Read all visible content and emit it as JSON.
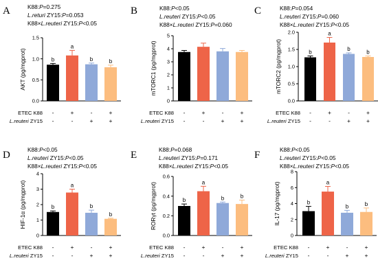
{
  "chart_data": [
    {
      "panel": "A",
      "type": "bar",
      "ylabel": "AKT (pg/mgprot)",
      "ylim": [
        0,
        1.5
      ],
      "yticks": [
        "0.0",
        "0.5",
        "1.0",
        "1.5"
      ],
      "categories": [
        "-/-",
        "+/-",
        "-/+",
        "+/+"
      ],
      "values": [
        0.86,
        1.08,
        0.87,
        0.8
      ],
      "errors": [
        0.03,
        0.12,
        0.03,
        0.05
      ],
      "letters": [
        "b",
        "a",
        "b",
        "b"
      ],
      "stats": [
        {
          "prefix": "K88:",
          "italic": "P",
          "suffix": "=0.275"
        },
        {
          "italic": "L.returi",
          "prefix2": " ZY15:",
          "italic2": "P",
          "suffix": "=0.053"
        },
        {
          "prefix": "K88×",
          "italic": "L.reuteri",
          "prefix2": " ZY15:",
          "italic2": "P",
          "suffix": "<0.05"
        }
      ]
    },
    {
      "panel": "B",
      "type": "bar",
      "ylabel": "mTORC1 (pg/mgprot)",
      "ylim": [
        0,
        5
      ],
      "yticks": [
        "0",
        "1",
        "2",
        "3",
        "4",
        "5"
      ],
      "categories": [
        "-/-",
        "+/-",
        "-/+",
        "+/+"
      ],
      "values": [
        3.75,
        4.15,
        3.8,
        3.75
      ],
      "errors": [
        0.12,
        0.28,
        0.22,
        0.12
      ],
      "letters": [
        "",
        "",
        "",
        ""
      ],
      "stats": [
        {
          "prefix": "K88:",
          "italic": "P",
          "suffix": "<0.05"
        },
        {
          "italic": "L.reuteri",
          "prefix2": " ZY15:",
          "italic2": "P",
          "suffix": "<0.05"
        },
        {
          "prefix": "K88×",
          "italic": "L.reuteri",
          "prefix2": " ZY15:",
          "italic2": "P",
          "suffix": "=0.060"
        }
      ]
    },
    {
      "panel": "C",
      "type": "bar",
      "ylabel": "mTORC2 (pg/mgprot)",
      "ylim": [
        0,
        2.0
      ],
      "yticks": [
        "0.0",
        "0.5",
        "1.0",
        "1.5",
        "2.0"
      ],
      "categories": [
        "-/-",
        "+/-",
        "-/+",
        "+/+"
      ],
      "values": [
        1.27,
        1.7,
        1.37,
        1.28
      ],
      "errors": [
        0.04,
        0.15,
        0.03,
        0.03
      ],
      "letters": [
        "b",
        "a",
        "b",
        "b"
      ],
      "stats": [
        {
          "prefix": "K88:",
          "italic": "P",
          "suffix": "=0.054"
        },
        {
          "italic": "L.reuteri",
          "prefix2": " ZY15:",
          "italic2": "P",
          "suffix": "=0.060"
        },
        {
          "prefix": "K88×",
          "italic": "L.reuteri",
          "prefix2": " ZY15:",
          "italic2": "P",
          "suffix": "<0.05"
        }
      ]
    },
    {
      "panel": "D",
      "type": "bar",
      "ylabel": "HIF-1α (pg/mgprot)",
      "ylim": [
        0,
        4
      ],
      "yticks": [
        "0",
        "1",
        "2",
        "3",
        "4"
      ],
      "categories": [
        "-/-",
        "+/-",
        "-/+",
        "+/+"
      ],
      "values": [
        1.52,
        2.78,
        1.47,
        1.08
      ],
      "errors": [
        0.07,
        0.22,
        0.17,
        0.04
      ],
      "letters": [
        "b",
        "a",
        "b",
        "b"
      ],
      "stats": [
        {
          "prefix": "K88:",
          "italic": "P",
          "suffix": "<0.05"
        },
        {
          "italic": "L.reuteri",
          "prefix2": " ZY15:",
          "italic2": "P",
          "suffix": "<0.05"
        },
        {
          "prefix": "K88×",
          "italic": "L.reuteri",
          "prefix2": " ZY15:",
          "italic2": "P",
          "suffix": "<0.05"
        }
      ]
    },
    {
      "panel": "E",
      "type": "bar",
      "ylabel": "RORγt (pg/mgprot)",
      "ylim": [
        0,
        0.6
      ],
      "yticks": [
        "0.0",
        "0.2",
        "0.4",
        "0.6"
      ],
      "categories": [
        "-/-",
        "+/-",
        "-/+",
        "+/+"
      ],
      "values": [
        0.3,
        0.45,
        0.33,
        0.32
      ],
      "errors": [
        0.02,
        0.05,
        0.01,
        0.04
      ],
      "letters": [
        "b",
        "a",
        "b",
        "b"
      ],
      "stats": [
        {
          "prefix": "K88:",
          "italic": "P",
          "suffix": "=0.068"
        },
        {
          "italic": "L.reuteri",
          "prefix2": " ZY15:",
          "italic2": "P",
          "suffix": "=0.171"
        },
        {
          "prefix": "K88×",
          "italic": "L.reuteri",
          "prefix2": " ZY15:",
          "italic2": "P",
          "suffix": "<0.05"
        }
      ]
    },
    {
      "panel": "F",
      "type": "bar",
      "ylabel": "IL-17 (pg/mgprot)",
      "ylim": [
        0,
        8
      ],
      "yticks": [
        "0",
        "2",
        "4",
        "6",
        "8"
      ],
      "categories": [
        "-/-",
        "+/-",
        "-/+",
        "+/+"
      ],
      "values": [
        3.05,
        5.5,
        2.85,
        2.95
      ],
      "errors": [
        0.6,
        0.65,
        0.3,
        0.5
      ],
      "letters": [
        "b",
        "a",
        "b",
        "b"
      ],
      "stats": [
        {
          "prefix": "K88:",
          "italic": "P",
          "suffix": "<0.05"
        },
        {
          "italic": "L.reuteri",
          "prefix2": " ZY15:",
          "italic2": "P",
          "suffix": "<0.05"
        },
        {
          "prefix": "K88×",
          "italic": "L.reuteri",
          "prefix2": " ZY15:",
          "italic2": "P",
          "suffix": "<0.05"
        }
      ]
    }
  ],
  "row_labels": {
    "etec": "ETEC K88",
    "lreuteri_italic": "L.reuteri",
    "lreuteri_suffix": " ZY15"
  },
  "etec_signs": [
    "-",
    "+",
    "-",
    "+"
  ],
  "lreuteri_signs": [
    "-",
    "-",
    "+",
    "+"
  ],
  "colors": {
    "bars": [
      "#000000",
      "#ee6448",
      "#8fa9d9",
      "#fcbd7f"
    ],
    "axis": "#000000"
  }
}
